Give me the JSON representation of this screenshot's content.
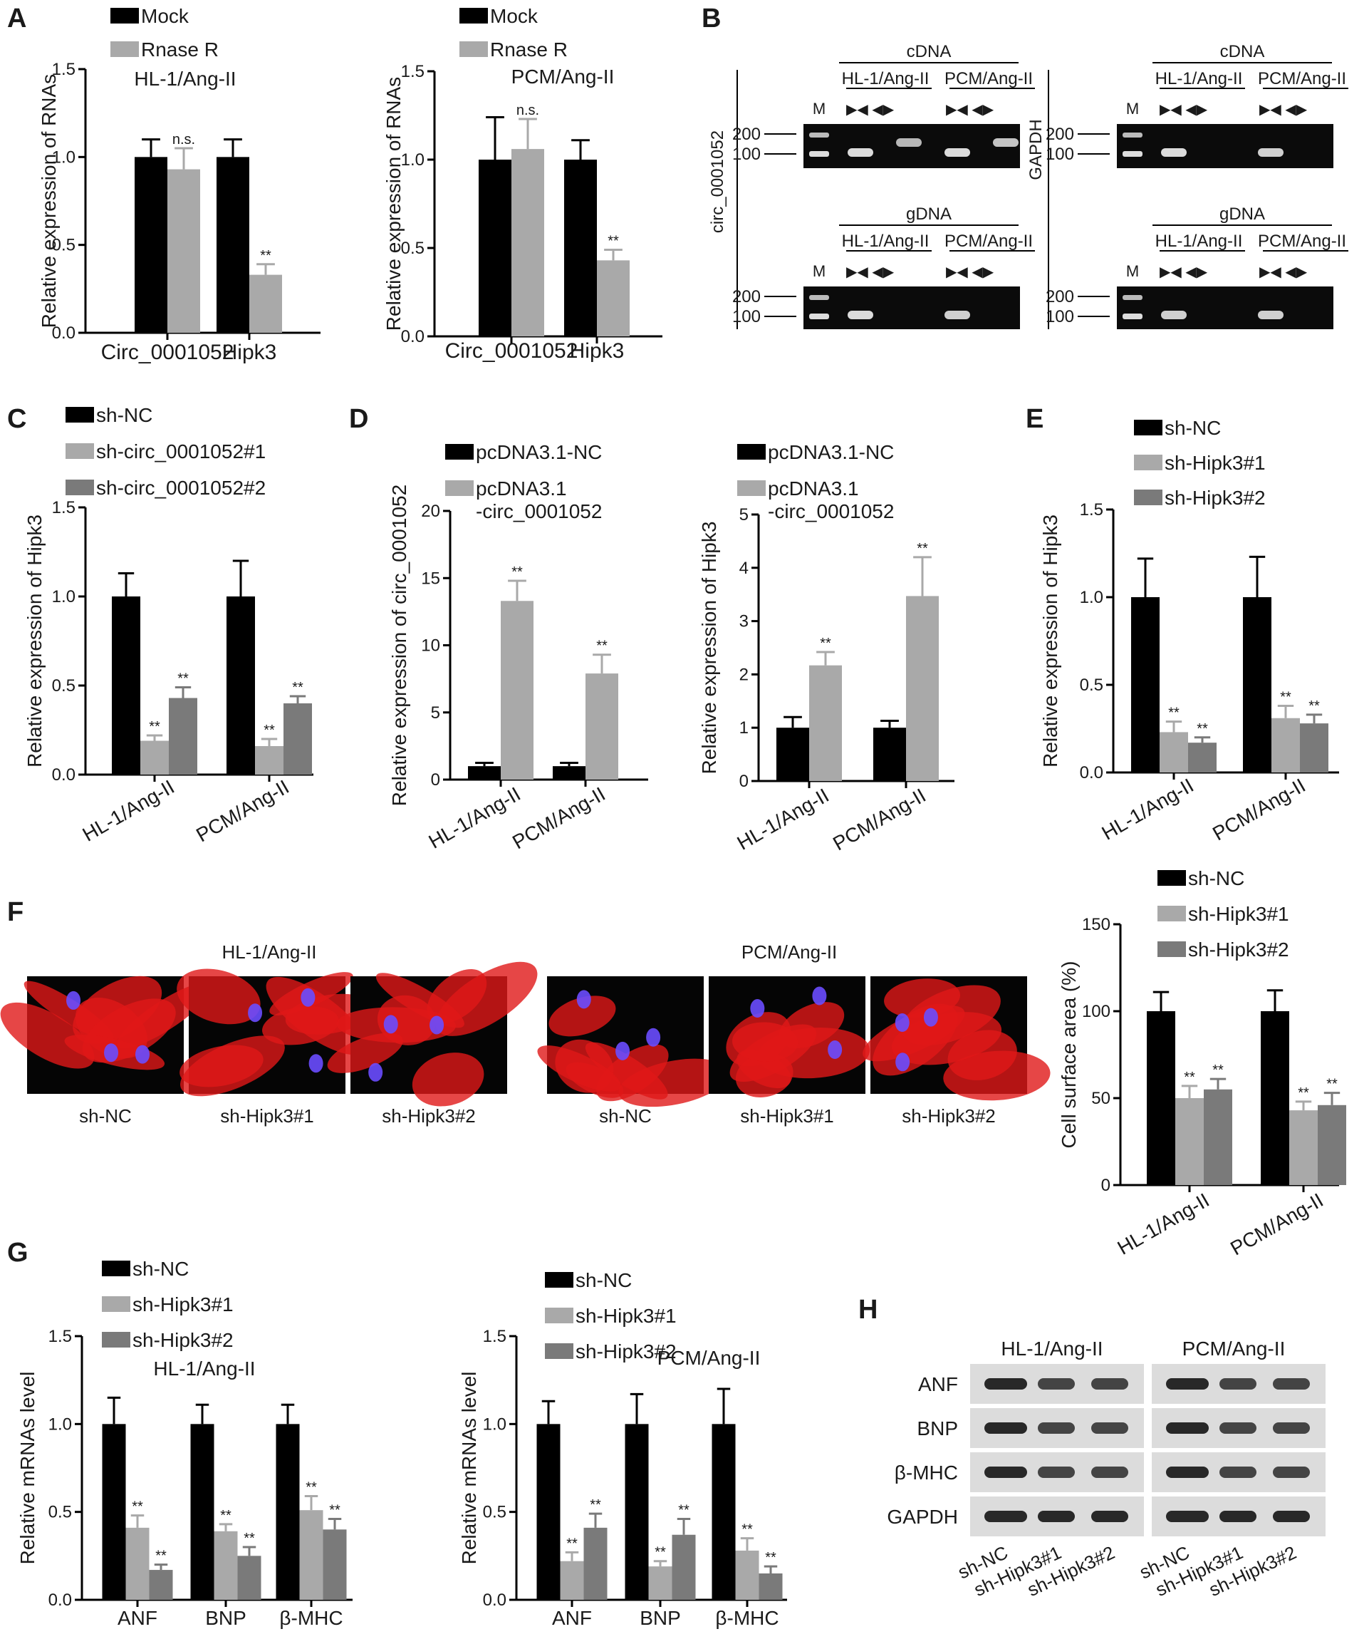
{
  "panels": {
    "A": "A",
    "B": "B",
    "C": "C",
    "D": "D",
    "E": "E",
    "F": "F",
    "G": "G",
    "H": "H"
  },
  "colors": {
    "black": "#000000",
    "light_gray": "#a9a9a9",
    "dark_gray": "#7a7a7a",
    "cell_red": "#e01818",
    "nucleus_blue": "#6a4cff",
    "gel_bg": "#0b0b0b",
    "band_white": "#f2f2f2",
    "blot_bg": "#dcdcdc",
    "blot_band": "#1e1e1e"
  },
  "chart_data": [
    {
      "id": "A1",
      "type": "bar",
      "title": "HL-1/Ang-II",
      "ylabel": "Relative expression of RNAs",
      "ylim": [
        0,
        1.5
      ],
      "yticks": [
        "0.0",
        "0.5",
        "1.0",
        "1.5"
      ],
      "categories": [
        "Circ_0001052",
        "Hipk3"
      ],
      "series": [
        {
          "name": "Mock",
          "values": [
            1.0,
            1.0
          ],
          "errors": [
            0.1,
            0.1
          ]
        },
        {
          "name": "Rnase R",
          "values": [
            0.93,
            0.33
          ],
          "errors": [
            0.12,
            0.06
          ]
        }
      ],
      "annotations": [
        [
          "",
          "n.s."
        ],
        [
          "",
          "**"
        ]
      ]
    },
    {
      "id": "A2",
      "type": "bar",
      "title": "PCM/Ang-II",
      "ylabel": "Relative expression of RNAs",
      "ylim": [
        0,
        1.5
      ],
      "yticks": [
        "0.0",
        "0.5",
        "1.0",
        "1.5"
      ],
      "categories": [
        "Circ_0001052",
        "Hipk3"
      ],
      "series": [
        {
          "name": "Mock",
          "values": [
            1.0,
            1.0
          ],
          "errors": [
            0.24,
            0.11
          ]
        },
        {
          "name": "Rnase R",
          "values": [
            1.06,
            0.43
          ],
          "errors": [
            0.17,
            0.06
          ]
        }
      ],
      "annotations": [
        [
          "",
          "n.s."
        ],
        [
          "",
          "**"
        ]
      ]
    },
    {
      "id": "C",
      "type": "bar",
      "ylabel": "Relative expression of Hipk3",
      "ylim": [
        0,
        1.5
      ],
      "yticks": [
        "0.0",
        "0.5",
        "1.0",
        "1.5"
      ],
      "categories": [
        "HL-1/Ang-II",
        "PCM/Ang-II"
      ],
      "series": [
        {
          "name": "sh-NC",
          "values": [
            1.0,
            1.0
          ],
          "errors": [
            0.13,
            0.2
          ]
        },
        {
          "name": "sh-circ_0001052#1",
          "values": [
            0.19,
            0.16
          ],
          "errors": [
            0.03,
            0.04
          ]
        },
        {
          "name": "sh-circ_0001052#2",
          "values": [
            0.43,
            0.4
          ],
          "errors": [
            0.06,
            0.04
          ]
        }
      ],
      "annotations": [
        [
          "",
          "**",
          "**"
        ],
        [
          "",
          "**",
          "**"
        ]
      ]
    },
    {
      "id": "D1",
      "type": "bar",
      "ylabel": "Relative expression of circ_0001052",
      "ylim": [
        0,
        20
      ],
      "yticks": [
        "0",
        "5",
        "10",
        "15",
        "20"
      ],
      "categories": [
        "HL-1/Ang-II",
        "PCM/Ang-II"
      ],
      "series": [
        {
          "name": "pcDNA3.1-NC",
          "values": [
            1.0,
            1.0
          ],
          "errors": [
            0.25,
            0.25
          ]
        },
        {
          "name": "pcDNA3.1\n-circ_0001052",
          "values": [
            13.3,
            7.9
          ],
          "errors": [
            1.5,
            1.4
          ]
        }
      ],
      "annotations": [
        [
          "",
          "**"
        ],
        [
          "",
          "**"
        ]
      ]
    },
    {
      "id": "D2",
      "type": "bar",
      "ylabel": "Relative expression of Hipk3",
      "ylim": [
        0,
        5
      ],
      "yticks": [
        "0",
        "1",
        "2",
        "3",
        "4",
        "5"
      ],
      "categories": [
        "HL-1/Ang-II",
        "PCM/Ang-II"
      ],
      "series": [
        {
          "name": "pcDNA3.1-NC",
          "values": [
            1.0,
            1.0
          ],
          "errors": [
            0.2,
            0.13
          ]
        },
        {
          "name": "pcDNA3.1\n-circ_0001052",
          "values": [
            2.17,
            3.47
          ],
          "errors": [
            0.25,
            0.73
          ]
        }
      ],
      "annotations": [
        [
          "",
          "**"
        ],
        [
          "",
          "**"
        ]
      ]
    },
    {
      "id": "E",
      "type": "bar",
      "ylabel": "Relative expression of Hipk3",
      "ylim": [
        0,
        1.5
      ],
      "yticks": [
        "0.0",
        "0.5",
        "1.0",
        "1.5"
      ],
      "categories": [
        "HL-1/Ang-II",
        "PCM/Ang-II"
      ],
      "series": [
        {
          "name": "sh-NC",
          "values": [
            1.0,
            1.0
          ],
          "errors": [
            0.22,
            0.23
          ]
        },
        {
          "name": "sh-Hipk3#1",
          "values": [
            0.23,
            0.31
          ],
          "errors": [
            0.06,
            0.07
          ]
        },
        {
          "name": "sh-Hipk3#2",
          "values": [
            0.17,
            0.28
          ],
          "errors": [
            0.03,
            0.05
          ]
        }
      ],
      "annotations": [
        [
          "",
          "**",
          "**"
        ],
        [
          "",
          "**",
          "**"
        ]
      ]
    },
    {
      "id": "F",
      "type": "bar",
      "ylabel": "Cell surface area (%)",
      "ylim": [
        0,
        150
      ],
      "yticks": [
        "0",
        "50",
        "100",
        "150"
      ],
      "categories": [
        "HL-1/Ang-II",
        "PCM/Ang-II"
      ],
      "series": [
        {
          "name": "sh-NC",
          "values": [
            100,
            100
          ],
          "errors": [
            11,
            12
          ]
        },
        {
          "name": "sh-Hipk3#1",
          "values": [
            50,
            43
          ],
          "errors": [
            7,
            5
          ]
        },
        {
          "name": "sh-Hipk3#2",
          "values": [
            55,
            46
          ],
          "errors": [
            6,
            7
          ]
        }
      ],
      "annotations": [
        [
          "",
          "**",
          "**"
        ],
        [
          "",
          "**",
          "**"
        ]
      ]
    },
    {
      "id": "G1",
      "type": "bar",
      "title": "HL-1/Ang-II",
      "ylabel": "Relative mRNAs level",
      "ylim": [
        0,
        1.5
      ],
      "yticks": [
        "0.0",
        "0.5",
        "1.0",
        "1.5"
      ],
      "categories": [
        "ANF",
        "BNP",
        "β-MHC"
      ],
      "series": [
        {
          "name": "sh-NC",
          "values": [
            1.0,
            1.0,
            1.0
          ],
          "errors": [
            0.15,
            0.11,
            0.11
          ]
        },
        {
          "name": "sh-Hipk3#1",
          "values": [
            0.41,
            0.39,
            0.51
          ],
          "errors": [
            0.07,
            0.04,
            0.08
          ]
        },
        {
          "name": "sh-Hipk3#2",
          "values": [
            0.17,
            0.25,
            0.4
          ],
          "errors": [
            0.03,
            0.05,
            0.06
          ]
        }
      ],
      "annotations": [
        [
          "",
          "**",
          "**"
        ],
        [
          "",
          "**",
          "**"
        ],
        [
          "",
          "**",
          "**"
        ]
      ]
    },
    {
      "id": "G2",
      "type": "bar",
      "title": "PCM/Ang-II",
      "ylabel": "Relative mRNAs level",
      "ylim": [
        0,
        1.5
      ],
      "yticks": [
        "0.0",
        "0.5",
        "1.0",
        "1.5"
      ],
      "categories": [
        "ANF",
        "BNP",
        "β-MHC"
      ],
      "series": [
        {
          "name": "sh-NC",
          "values": [
            1.0,
            1.0,
            1.0
          ],
          "errors": [
            0.13,
            0.17,
            0.2
          ]
        },
        {
          "name": "sh-Hipk3#1",
          "values": [
            0.22,
            0.19,
            0.28
          ],
          "errors": [
            0.05,
            0.03,
            0.07
          ]
        },
        {
          "name": "sh-Hipk3#2",
          "values": [
            0.41,
            0.37,
            0.15
          ],
          "errors": [
            0.08,
            0.09,
            0.04
          ]
        }
      ],
      "annotations": [
        [
          "",
          "**",
          "**"
        ],
        [
          "",
          "**",
          "**"
        ],
        [
          "",
          "**",
          "**"
        ]
      ]
    }
  ],
  "panel_B": {
    "left_label": "circ_0001052",
    "right_label": "GAPDH",
    "cdna_label": "cDNA",
    "gdna_label": "gDNA",
    "lane_groups": [
      "HL-1/Ang-II",
      "PCM/Ang-II"
    ],
    "marker_label": "M",
    "size_markers": [
      "200",
      "100"
    ],
    "primer_symbols": "▶◀   ◀▶"
  },
  "panel_F": {
    "groups": [
      "HL-1/Ang-II",
      "PCM/Ang-II"
    ],
    "image_labels": [
      "sh-NC",
      "sh-Hipk3#1",
      "sh-Hipk3#2"
    ]
  },
  "panel_H": {
    "groups": [
      "HL-1/Ang-II",
      "PCM/Ang-II"
    ],
    "rows": [
      "ANF",
      "BNP",
      "β-MHC",
      "GAPDH"
    ],
    "lanes": [
      "sh-NC",
      "sh-Hipk3#1",
      "sh-Hipk3#2"
    ]
  }
}
